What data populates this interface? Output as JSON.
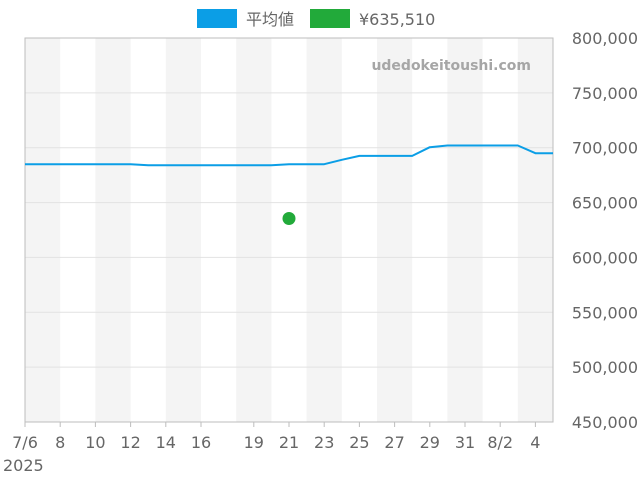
{
  "watermark": "udedokeitoushi.com",
  "colors": {
    "average": "#0b9ee6",
    "marker": "#22aa3a",
    "band": "#f4f4f4",
    "grid": "#e2e2e2",
    "axis": "#bdbdbd"
  },
  "legend": [
    {
      "label": "平均値",
      "color": "#0b9ee6"
    },
    {
      "label": "¥635,510",
      "color": "#22aa3a"
    }
  ],
  "chart_data": {
    "type": "line",
    "title": "",
    "xlabel": "",
    "ylabel": "",
    "grid": true,
    "legend_position": "top",
    "y_axis_position": "right",
    "ylim": [
      450000,
      800000
    ],
    "yticks": [
      450000,
      500000,
      550000,
      600000,
      650000,
      700000,
      750000,
      800000
    ],
    "ytick_labels": [
      "450,000",
      "500,000",
      "550,000",
      "600,000",
      "650,000",
      "700,000",
      "750,000",
      "800,000"
    ],
    "xlim": [
      "2025-07-06",
      "2025-08-05"
    ],
    "xticks": [
      "2025-07-06",
      "2025-07-08",
      "2025-07-10",
      "2025-07-12",
      "2025-07-14",
      "2025-07-16",
      "2025-07-19",
      "2025-07-21",
      "2025-07-23",
      "2025-07-25",
      "2025-07-27",
      "2025-07-29",
      "2025-07-31",
      "2025-08-02",
      "2025-08-04"
    ],
    "xtick_labels": [
      "7/6",
      "8",
      "10",
      "12",
      "14",
      "16",
      "19",
      "21",
      "23",
      "25",
      "27",
      "29",
      "31",
      "8/2",
      "4"
    ],
    "year_label": "2025",
    "series": [
      {
        "name": "平均値",
        "color": "#0b9ee6",
        "x": [
          "2025-07-06",
          "2025-07-12",
          "2025-07-13",
          "2025-07-20",
          "2025-07-21",
          "2025-07-23",
          "2025-07-24",
          "2025-07-25",
          "2025-07-28",
          "2025-07-29",
          "2025-07-30",
          "2025-08-03",
          "2025-08-04",
          "2025-08-05"
        ],
        "y": [
          685000,
          685000,
          684000,
          684000,
          685000,
          685000,
          689000,
          692500,
          692500,
          700500,
          702000,
          702000,
          695000,
          695000
        ]
      },
      {
        "name": "¥635,510",
        "type": "scatter",
        "color": "#22aa3a",
        "x": [
          "2025-07-21"
        ],
        "y": [
          635510
        ]
      }
    ]
  }
}
